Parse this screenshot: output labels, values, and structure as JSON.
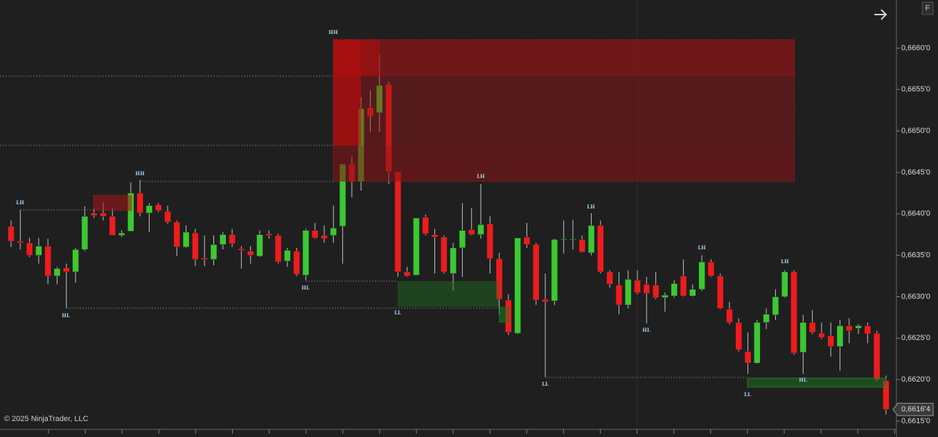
{
  "chart_data": {
    "type": "candlestick",
    "open": [
      0.66385,
      0.66367,
      0.66365,
      0.6635,
      0.66361,
      0.66325,
      0.66335,
      0.6633,
      0.66357,
      0.66401,
      0.66401,
      0.66397,
      0.66374,
      0.66379,
      0.66425,
      0.66401,
      0.66411,
      0.66403,
      0.6639,
      0.6636,
      0.66377,
      0.66347,
      0.66345,
      0.66363,
      0.66375,
      0.66358,
      0.66355,
      0.66349,
      0.66376,
      0.66374,
      0.66343,
      0.66355,
      0.66326,
      0.6638,
      0.66374,
      0.66374,
      0.66385,
      0.6646,
      0.66439,
      0.66528,
      0.66522,
      0.66556,
      0.66451,
      0.6633,
      0.66326,
      0.66396,
      0.66375,
      0.66372,
      0.66328,
      0.66359,
      0.66381,
      0.66375,
      0.66388,
      0.66346,
      0.66296,
      0.66256,
      0.66372,
      0.66363,
      0.66297,
      0.66295,
      0.66369,
      0.66369,
      0.66369,
      0.66353,
      0.66386,
      0.6633,
      0.66314,
      0.6629,
      0.6632,
      0.66315,
      0.66314,
      0.66299,
      0.66301,
      0.66325,
      0.66301,
      0.66309,
      0.66342,
      0.66325,
      0.66285,
      0.66269,
      0.66234,
      0.6622,
      0.66269,
      0.66278,
      0.663,
      0.6633,
      0.66233,
      0.66269,
      0.66256,
      0.66253,
      0.6624,
      0.66265,
      0.66262,
      0.66265,
      0.66256,
      0.66199
    ],
    "high": [
      0.66392,
      0.66405,
      0.66371,
      0.66371,
      0.6637,
      0.66336,
      0.6634,
      0.66359,
      0.66409,
      0.66407,
      0.66414,
      0.66407,
      0.6638,
      0.66438,
      0.66441,
      0.66413,
      0.66413,
      0.6641,
      0.66392,
      0.66386,
      0.66382,
      0.66374,
      0.66374,
      0.66378,
      0.66382,
      0.66361,
      0.66361,
      0.6638,
      0.6638,
      0.66376,
      0.66359,
      0.66359,
      0.66382,
      0.66389,
      0.66386,
      0.6641,
      0.6646,
      0.6647,
      0.66541,
      0.66549,
      0.66593,
      0.66559,
      0.66451,
      0.66336,
      0.66395,
      0.66399,
      0.66382,
      0.66374,
      0.66365,
      0.66413,
      0.66407,
      0.66436,
      0.66397,
      0.66353,
      0.66303,
      0.66371,
      0.66389,
      0.66365,
      0.66328,
      0.6637,
      0.66392,
      0.66393,
      0.66374,
      0.66401,
      0.66392,
      0.66332,
      0.6633,
      0.66332,
      0.66332,
      0.66324,
      0.6633,
      0.66305,
      0.6632,
      0.66345,
      0.66315,
      0.6635,
      0.66345,
      0.66328,
      0.66294,
      0.66274,
      0.66257,
      0.66272,
      0.66286,
      0.66309,
      0.66332,
      0.66332,
      0.66278,
      0.66284,
      0.66269,
      0.66269,
      0.66272,
      0.66274,
      0.66267,
      0.66269,
      0.66259,
      0.66205
    ],
    "low": [
      0.6636,
      0.66357,
      0.66348,
      0.6634,
      0.66315,
      0.66315,
      0.66286,
      0.66317,
      0.66355,
      0.66395,
      0.66392,
      0.66374,
      0.66372,
      0.66379,
      0.66397,
      0.66378,
      0.66402,
      0.66388,
      0.66349,
      0.66359,
      0.66337,
      0.66337,
      0.66338,
      0.66357,
      0.6636,
      0.66334,
      0.6634,
      0.66348,
      0.6637,
      0.6634,
      0.66336,
      0.66325,
      0.6632,
      0.6637,
      0.66365,
      0.66365,
      0.6634,
      0.6642,
      0.66428,
      0.66499,
      0.66499,
      0.66436,
      0.66324,
      0.66324,
      0.66326,
      0.66374,
      0.66328,
      0.66328,
      0.66307,
      0.66324,
      0.66374,
      0.6637,
      0.66328,
      0.66278,
      0.66254,
      0.66255,
      0.66359,
      0.6629,
      0.66203,
      0.6629,
      0.66352,
      0.66357,
      0.66353,
      0.6635,
      0.66328,
      0.66311,
      0.66279,
      0.66286,
      0.66303,
      0.66268,
      0.66297,
      0.66282,
      0.66299,
      0.663,
      0.663,
      0.66307,
      0.66324,
      0.66285,
      0.66267,
      0.66234,
      0.66207,
      0.66219,
      0.66261,
      0.66272,
      0.66299,
      0.6623,
      0.66207,
      0.66255,
      0.66249,
      0.66228,
      0.66211,
      0.66244,
      0.66255,
      0.66244,
      0.66198,
      0.66158
    ],
    "close": [
      0.66367,
      0.66365,
      0.6635,
      0.66361,
      0.66325,
      0.66334,
      0.6633,
      0.66357,
      0.66397,
      0.66398,
      0.66397,
      0.66374,
      0.66377,
      0.66425,
      0.66401,
      0.6641,
      0.66404,
      0.6639,
      0.6636,
      0.66378,
      0.66345,
      0.66345,
      0.66363,
      0.66375,
      0.66364,
      0.66356,
      0.6635,
      0.66375,
      0.66374,
      0.66342,
      0.66356,
      0.66327,
      0.6638,
      0.66371,
      0.6637,
      0.66383,
      0.6646,
      0.66439,
      0.66527,
      0.66518,
      0.66555,
      0.66451,
      0.6633,
      0.66325,
      0.66395,
      0.66376,
      0.66372,
      0.6633,
      0.66359,
      0.6638,
      0.66375,
      0.66387,
      0.66346,
      0.66297,
      0.66257,
      0.66371,
      0.66363,
      0.66296,
      0.66294,
      0.66369,
      0.6637,
      0.6637,
      0.66354,
      0.66386,
      0.6633,
      0.66315,
      0.6629,
      0.66321,
      0.66305,
      0.66304,
      0.66299,
      0.66302,
      0.66316,
      0.66301,
      0.66309,
      0.66342,
      0.66325,
      0.66286,
      0.66269,
      0.66236,
      0.6622,
      0.66269,
      0.66279,
      0.663,
      0.6633,
      0.66232,
      0.66269,
      0.66257,
      0.66251,
      0.6624,
      0.66265,
      0.66259,
      0.66265,
      0.66255,
      0.662,
      0.66164
    ],
    "up_color": "#3cc832",
    "down_color": "#ee1c1c",
    "wick_color": "#c8c8c8",
    "ylim": [
      0.6614,
      0.66658
    ],
    "yticks": [
      {
        "value": 0.6615,
        "label": "0,6615'0"
      },
      {
        "value": 0.662,
        "label": "0,6620'0"
      },
      {
        "value": 0.6625,
        "label": "0,6625'0"
      },
      {
        "value": 0.663,
        "label": "0,6630'0"
      },
      {
        "value": 0.6635,
        "label": "0,6635'0"
      },
      {
        "value": 0.664,
        "label": "0,6640'0"
      },
      {
        "value": 0.6645,
        "label": "0,6645'0"
      },
      {
        "value": 0.665,
        "label": "0,6650'0"
      },
      {
        "value": 0.6655,
        "label": "0,6655'0"
      },
      {
        "value": 0.666,
        "label": "0,6660'0"
      }
    ],
    "last_price": {
      "value": 0.66164,
      "label": "0,6616'4"
    },
    "annotations": [
      "LH",
      "HL",
      "HH",
      "HH",
      "HL",
      "LL",
      "LH",
      "LL",
      "LH",
      "HL",
      "LH",
      "LL",
      "LH",
      "HL"
    ],
    "copyright": "© 2025 NinjaTrader, LLC",
    "panel_button": "F"
  }
}
